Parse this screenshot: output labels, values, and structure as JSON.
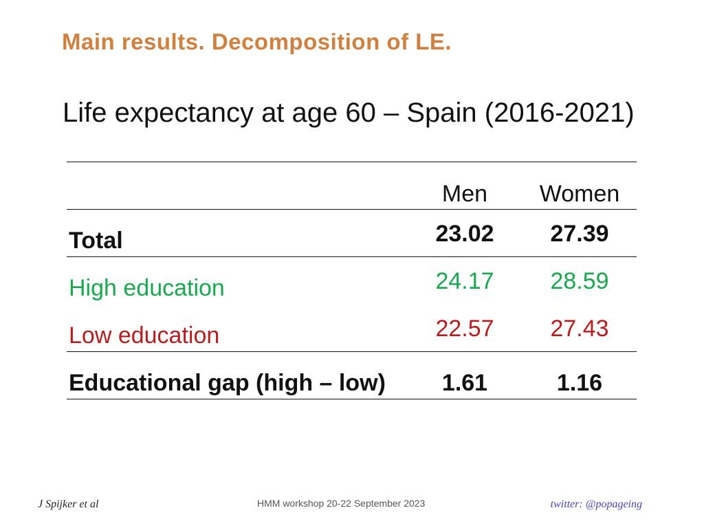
{
  "title": "Main results. Decomposition of LE.",
  "subtitle": "Life expectancy at age 60 – Spain (2016-2021)",
  "table": {
    "columns": [
      "Men",
      "Women"
    ],
    "rows": [
      {
        "label": "Total",
        "men": "23.02",
        "women": "27.39",
        "style": "bold"
      },
      {
        "label": "High education",
        "men": "24.17",
        "women": "28.59",
        "style": "green"
      },
      {
        "label": "Low education",
        "men": "22.57",
        "women": "27.43",
        "style": "red"
      },
      {
        "label": "Educational gap (high – low)",
        "men": "1.61",
        "women": "1.16",
        "style": "bold"
      }
    ]
  },
  "colors": {
    "title": "#d0813f",
    "high_education": "#1aa84e",
    "low_education": "#b81d1d",
    "footer_right": "#4444bb"
  },
  "footer": {
    "author": "J Spijker et al",
    "event": "HMM workshop 20-22 September 2023",
    "twitter": "twitter: @popageing"
  }
}
